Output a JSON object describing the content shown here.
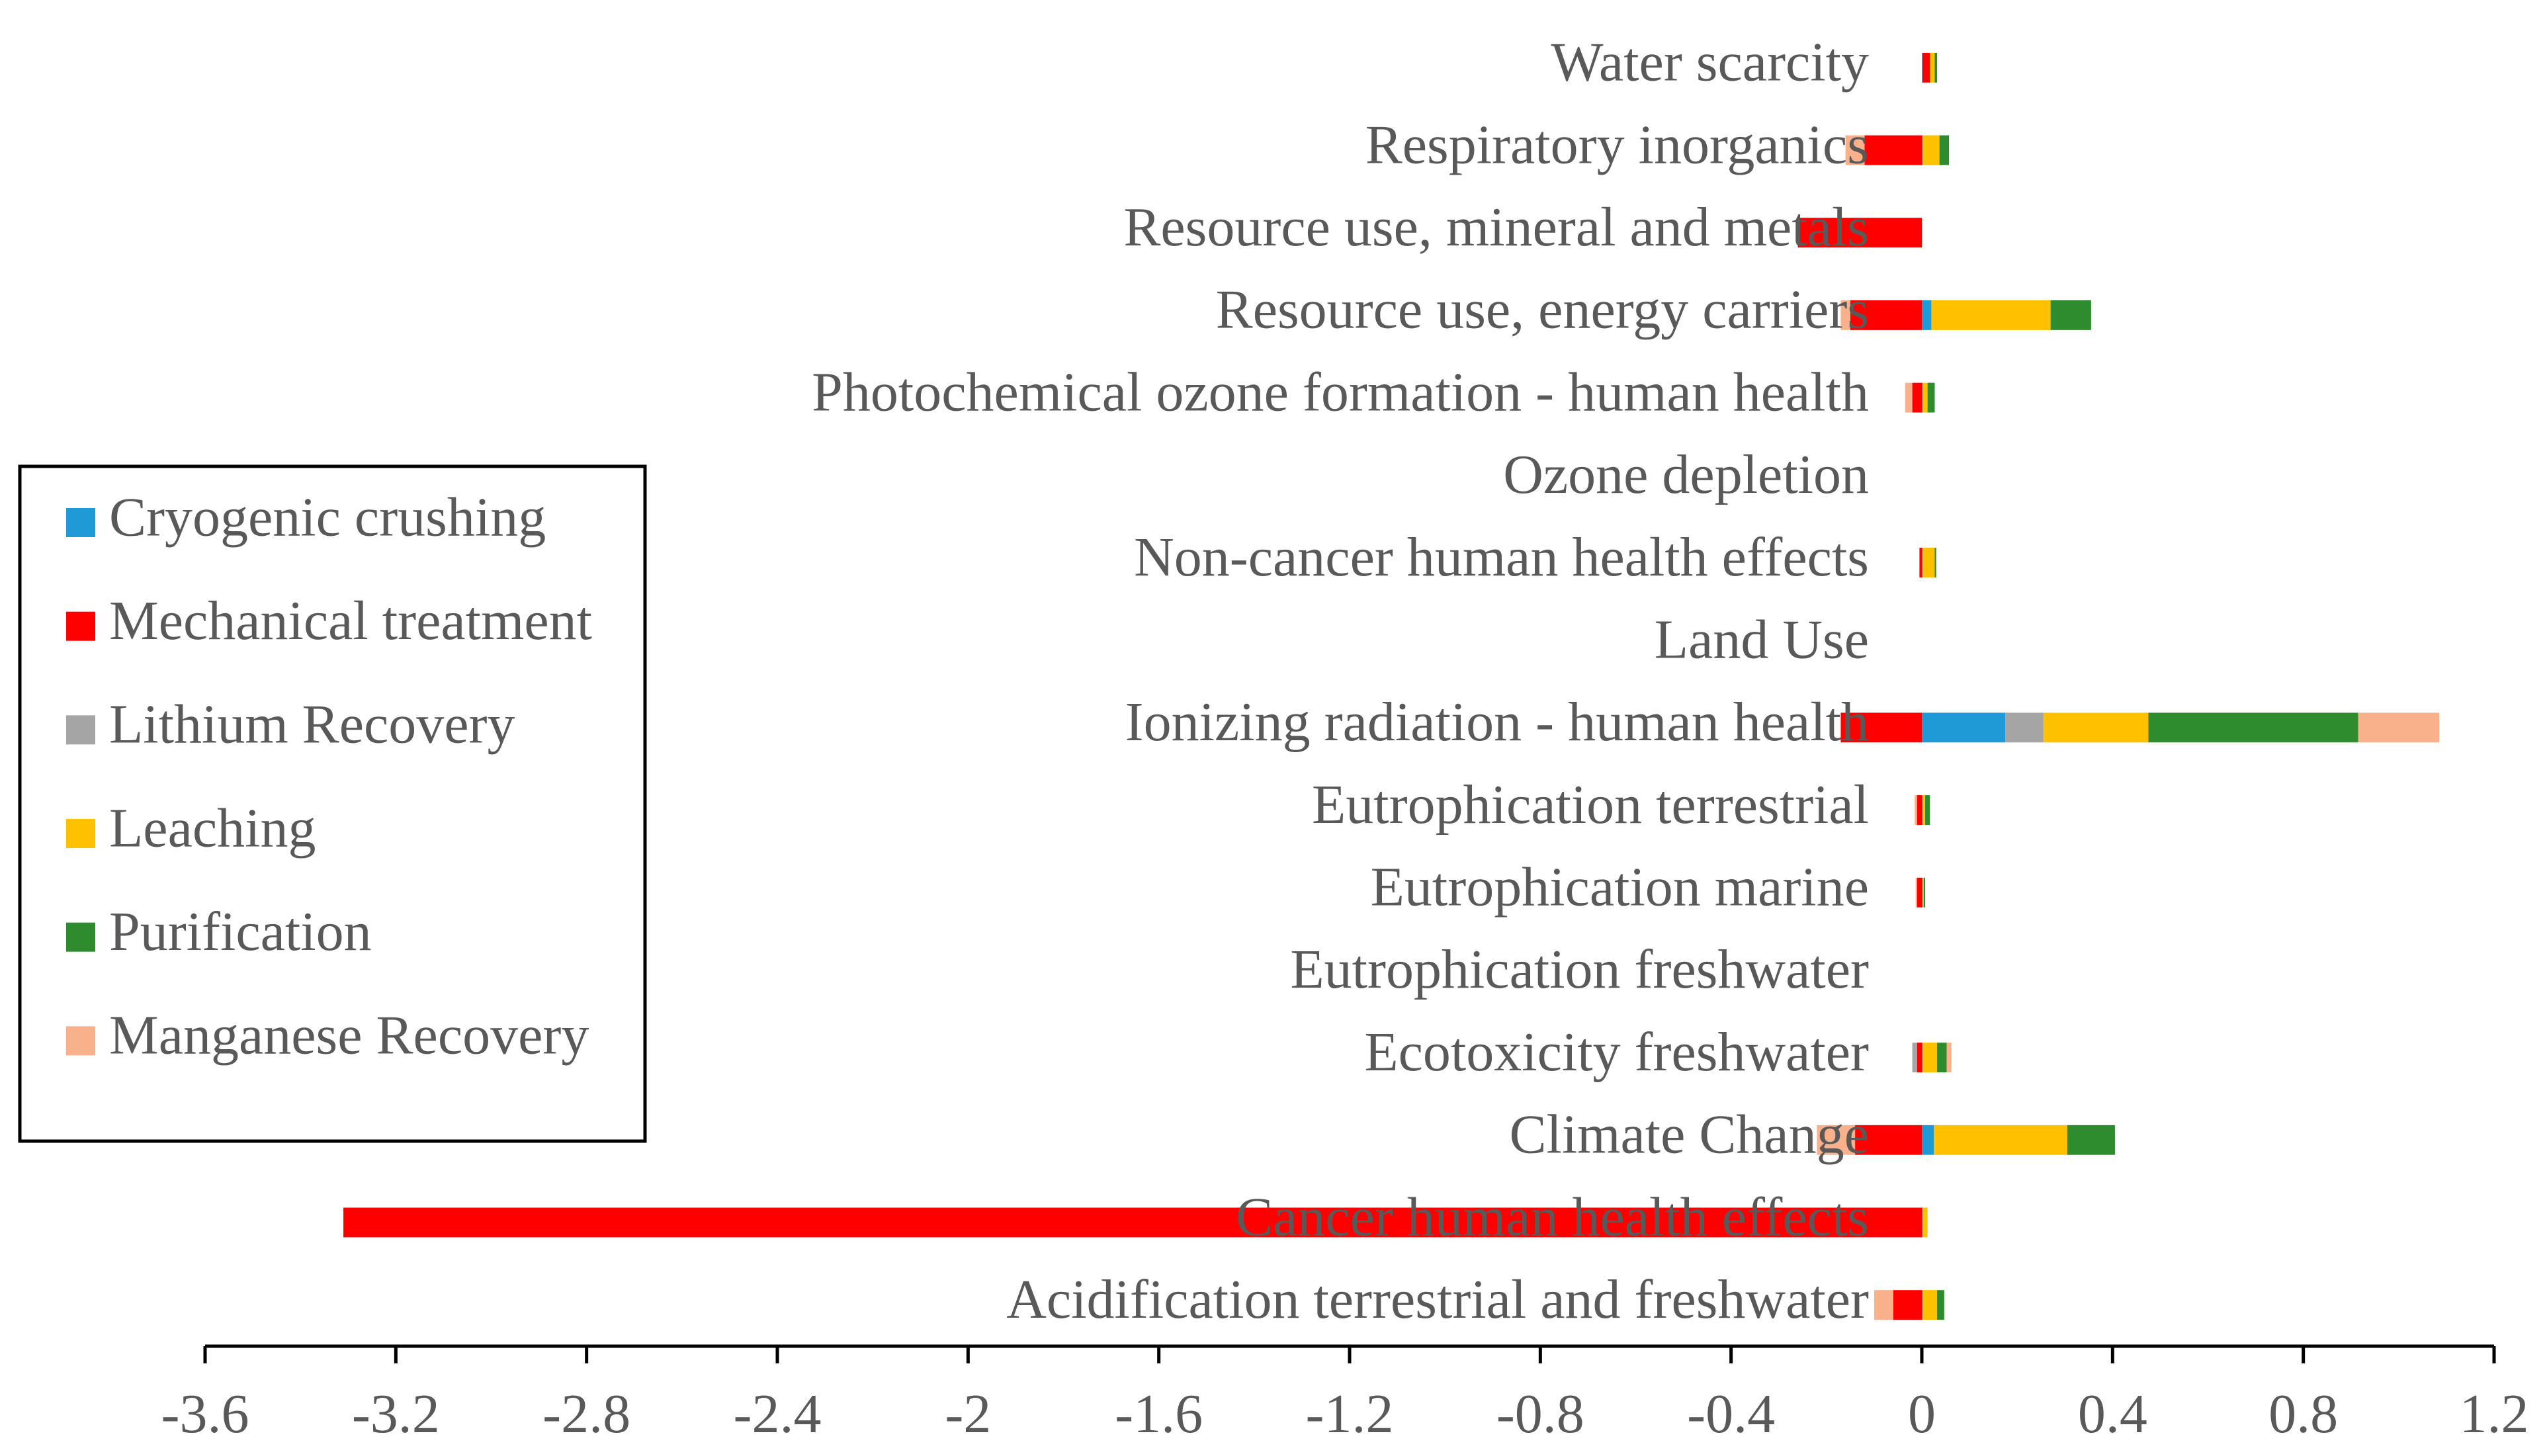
{
  "chart_data": {
    "type": "bar",
    "orientation": "horizontal",
    "stacked": true,
    "title": "",
    "xlabel": "",
    "ylabel": "",
    "xlim": [
      -3.6,
      1.2
    ],
    "x_ticks": [
      -3.6,
      -3.2,
      -2.8,
      -2.4,
      -2,
      -1.6,
      -1.2,
      -0.8,
      -0.4,
      0,
      0.4,
      0.8,
      1.2
    ],
    "x_tick_labels": [
      "-3.6",
      "-3.2",
      "-2.8",
      "-2.4",
      "-2",
      "-1.6",
      "-1.2",
      "-0.8",
      "-0.4",
      "0",
      "0.4",
      "0.8",
      "1.2"
    ],
    "grid": false,
    "legend_position": "left",
    "categories": [
      "Water scarcity",
      "Respiratory inorganics",
      "Resource use, mineral and metals",
      "Resource use, energy carriers",
      "Photochemical ozone formation - human health",
      "Ozone depletion",
      "Non-cancer human health effects",
      "Land Use",
      "Ionizing radiation - human health",
      "Eutrophication terrestrial",
      "Eutrophication marine",
      "Eutrophication freshwater",
      "Ecotoxicity freshwater",
      "Climate Change",
      "Cancer human health effects",
      "Acidification terrestrial and freshwater"
    ],
    "series": [
      {
        "name": "Cryogenic crushing",
        "color": "#1f9ad6",
        "values": [
          0.002,
          0.002,
          0,
          0.02,
          0.002,
          0,
          0.002,
          0,
          0.175,
          0.002,
          0.002,
          0,
          0.002,
          0.025,
          0.002,
          0.002
        ]
      },
      {
        "name": "Mechanical treatment",
        "color": "#ff0000",
        "values": [
          0.015,
          -0.12,
          -0.26,
          -0.15,
          -0.02,
          0,
          -0.005,
          0,
          -0.17,
          -0.01,
          -0.01,
          0,
          -0.01,
          -0.14,
          -3.31,
          -0.06
        ]
      },
      {
        "name": "Lithium Recovery",
        "color": "#a5a5a5",
        "values": [
          0,
          0,
          0,
          0,
          0,
          0,
          0,
          0,
          0.08,
          0,
          0,
          0,
          -0.01,
          0,
          0,
          0
        ]
      },
      {
        "name": "Leaching",
        "color": "#ffc000",
        "values": [
          0.01,
          0.035,
          0,
          0.25,
          0.01,
          0,
          0.025,
          0,
          0.22,
          0.005,
          0.002,
          0,
          0.03,
          0.28,
          0.01,
          0.03
        ]
      },
      {
        "name": "Purification",
        "color": "#2e8b2e",
        "values": [
          0.005,
          0.02,
          0,
          0.085,
          0.015,
          0,
          0.003,
          0,
          0.44,
          0.01,
          0.003,
          0,
          0.02,
          0.1,
          0,
          0.015
        ]
      },
      {
        "name": "Manganese Recovery",
        "color": "#f9b18b",
        "values": [
          0,
          -0.04,
          0,
          -0.02,
          -0.015,
          0,
          0,
          0,
          0.17,
          -0.005,
          -0.003,
          0,
          0.01,
          -0.08,
          0,
          -0.04
        ]
      }
    ]
  }
}
